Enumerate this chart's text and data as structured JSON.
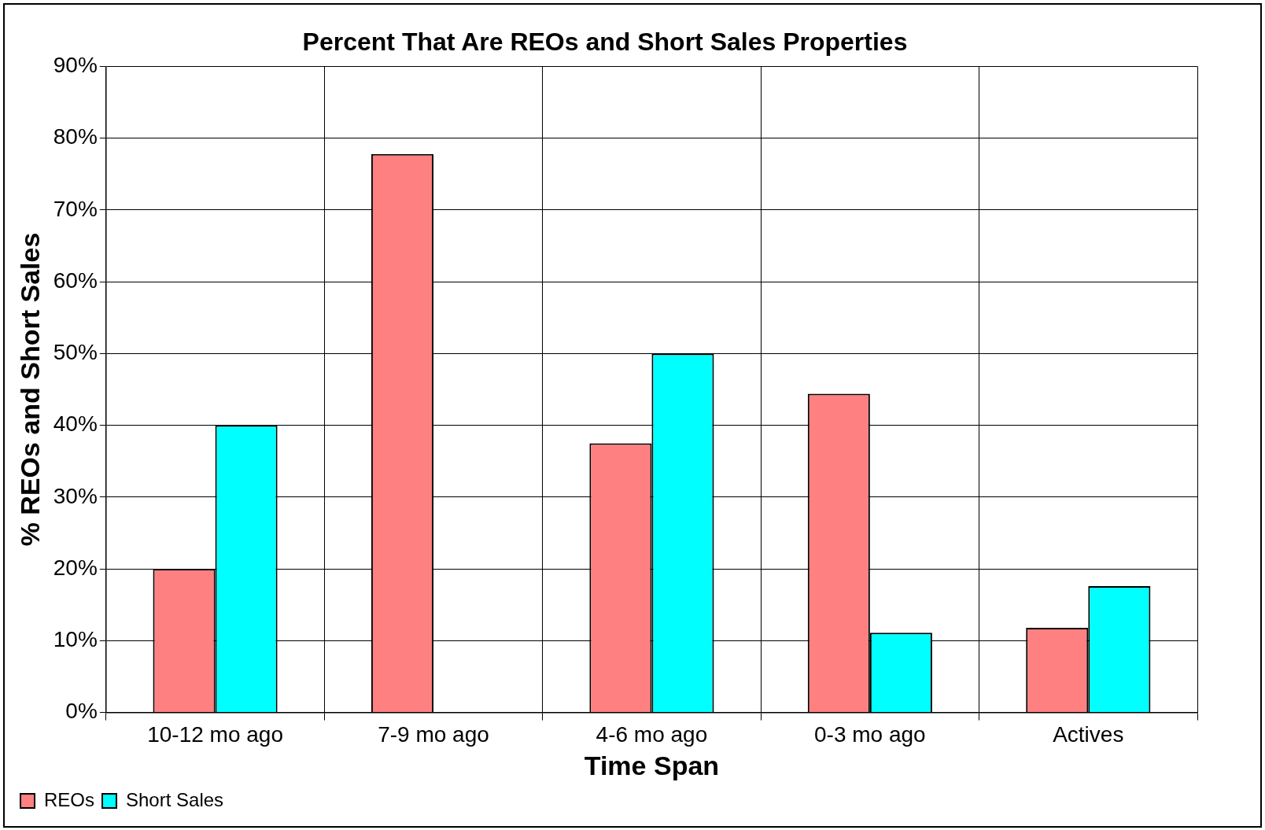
{
  "chart_data": {
    "type": "bar",
    "title": "Percent That Are REOs and Short Sales Properties",
    "xlabel": "Time Span",
    "ylabel": "% REOs and Short Sales",
    "categories": [
      "10-12 mo ago",
      "7-9 mo ago",
      "4-6 mo ago",
      "0-3 mo ago",
      "Actives"
    ],
    "series": [
      {
        "name": "REOs",
        "color": "#ff8080",
        "values": [
          20,
          77.8,
          37.5,
          44.4,
          11.8
        ]
      },
      {
        "name": "Short Sales",
        "color": "#00ffff",
        "values": [
          40,
          0,
          50,
          11.1,
          17.6
        ]
      }
    ],
    "ylim": [
      0,
      90
    ],
    "yticks": [
      {
        "value": 0,
        "label": "0%"
      },
      {
        "value": 10,
        "label": "10%"
      },
      {
        "value": 20,
        "label": "20%"
      },
      {
        "value": 30,
        "label": "30%"
      },
      {
        "value": 40,
        "label": "40%"
      },
      {
        "value": 50,
        "label": "50%"
      },
      {
        "value": 60,
        "label": "60%"
      },
      {
        "value": 70,
        "label": "70%"
      },
      {
        "value": 80,
        "label": "80%"
      },
      {
        "value": 90,
        "label": "90%"
      }
    ],
    "grid": true,
    "legend": "bottom left"
  }
}
